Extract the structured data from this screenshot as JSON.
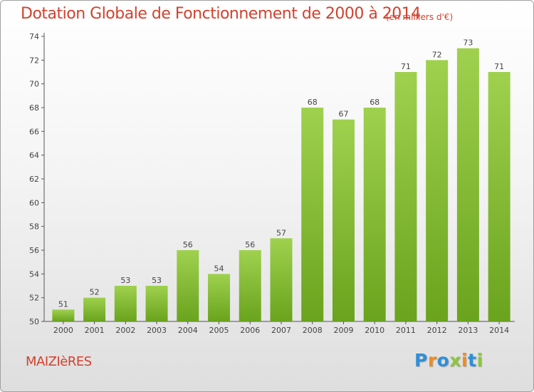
{
  "header": {
    "title": "Dotation Globale de Fonctionnement de 2000 à 2014",
    "unit": "(en milliers d'€)"
  },
  "footer": {
    "place": "MAIZIèRES",
    "logo": [
      "P",
      "r",
      "o",
      "x",
      "i",
      "t",
      "i"
    ]
  },
  "chart_data": {
    "type": "bar",
    "title": "Dotation Globale de Fonctionnement de 2000 à 2014",
    "subtitle": "(en milliers d'€)",
    "categories": [
      "2000",
      "2001",
      "2002",
      "2003",
      "2004",
      "2005",
      "2006",
      "2007",
      "2008",
      "2009",
      "2010",
      "2011",
      "2012",
      "2013",
      "2014"
    ],
    "values": [
      51,
      52,
      53,
      53,
      56,
      54,
      56,
      57,
      68,
      67,
      68,
      71,
      72,
      73,
      71
    ],
    "ylim": [
      50,
      74
    ],
    "yticks": [
      50,
      52,
      54,
      56,
      58,
      60,
      62,
      64,
      66,
      68,
      70,
      72,
      74
    ],
    "grid": false,
    "bar_color": "#8cc63e",
    "bar_color_dark": "#6aa31d"
  }
}
